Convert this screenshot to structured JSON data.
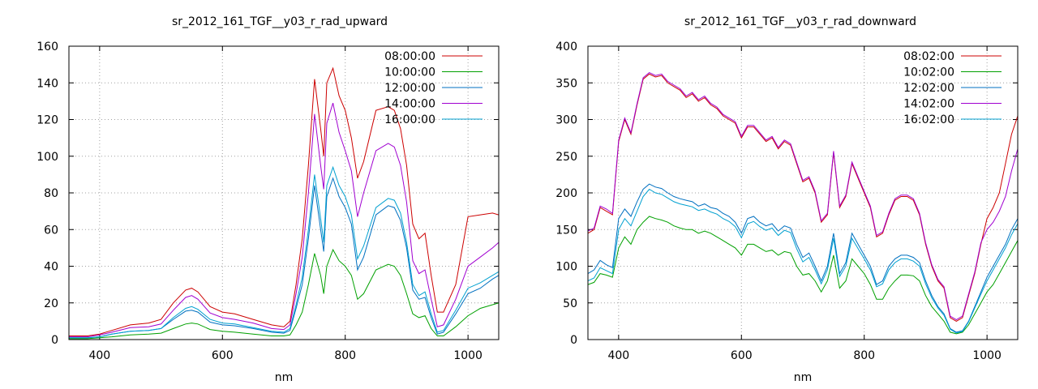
{
  "chart_data": [
    {
      "type": "line",
      "title": "sr_2012_161_TGF__y03_r_rad_upward",
      "xlabel": "nm",
      "ylabel": "",
      "xlim": [
        350,
        1050
      ],
      "ylim": [
        0,
        160
      ],
      "x_ticks": [
        400,
        600,
        800,
        1000
      ],
      "y_ticks": [
        0,
        20,
        40,
        60,
        80,
        100,
        120,
        140,
        160
      ],
      "grid": true,
      "legend_position": "top-right",
      "x": [
        350,
        380,
        400,
        420,
        450,
        480,
        500,
        520,
        540,
        550,
        560,
        580,
        600,
        620,
        650,
        680,
        700,
        710,
        720,
        730,
        740,
        750,
        760,
        765,
        770,
        780,
        790,
        800,
        810,
        820,
        830,
        850,
        870,
        880,
        890,
        900,
        910,
        920,
        930,
        940,
        950,
        960,
        980,
        1000,
        1020,
        1040,
        1050
      ],
      "series": [
        {
          "name": "08:00:00",
          "color": "#cc0000",
          "values": [
            2,
            2,
            3,
            5,
            8,
            9,
            11,
            20,
            27,
            28,
            26,
            18,
            15,
            14,
            11,
            8,
            7,
            10,
            30,
            55,
            95,
            142,
            115,
            100,
            140,
            148,
            133,
            125,
            110,
            88,
            97,
            125,
            127,
            125,
            115,
            95,
            63,
            55,
            58,
            35,
            15,
            15,
            30,
            67,
            68,
            69,
            68
          ]
        },
        {
          "name": "10:00:00",
          "color": "#00a000",
          "values": [
            0.5,
            0.5,
            1,
            1.5,
            2.5,
            3,
            3.5,
            6,
            8.5,
            9,
            8.5,
            5.5,
            4.5,
            4,
            3,
            2,
            2,
            2.5,
            8,
            15,
            30,
            47,
            35,
            25,
            40,
            49,
            43,
            40,
            35,
            22,
            25,
            38,
            41,
            40,
            35,
            25,
            14,
            12,
            13,
            6,
            2,
            2,
            7,
            13,
            17,
            19,
            20
          ]
        },
        {
          "name": "12:00:00",
          "color": "#0070c0",
          "values": [
            1,
            1,
            1.5,
            3,
            4.5,
            5,
            6,
            11,
            15.5,
            16,
            15,
            9.5,
            8,
            7.5,
            6,
            4,
            3.5,
            5,
            17,
            30,
            55,
            84,
            60,
            48,
            78,
            88,
            78,
            72,
            63,
            38,
            45,
            68,
            73,
            72,
            65,
            50,
            27,
            22,
            23,
            12,
            3,
            4,
            14,
            25,
            28,
            33,
            35
          ]
        },
        {
          "name": "14:00:00",
          "color": "#a000d0",
          "values": [
            1.5,
            1.5,
            2.5,
            4,
            6.5,
            7,
            8.5,
            16,
            23,
            24,
            22,
            14.5,
            12,
            11,
            9,
            6,
            5.5,
            8,
            25,
            45,
            80,
            123,
            95,
            82,
            118,
            129,
            113,
            103,
            92,
            67,
            80,
            103,
            107,
            105,
            95,
            75,
            43,
            36,
            38,
            22,
            7,
            8,
            22,
            40,
            45,
            50,
            53
          ]
        },
        {
          "name": "16:00:00",
          "color": "#00a0d0",
          "values": [
            1,
            1,
            1.5,
            3,
            4.5,
            5,
            6,
            12,
            17,
            18,
            16.5,
            11,
            9,
            8.5,
            6.5,
            4.5,
            4,
            6,
            19,
            34,
            60,
            90,
            66,
            53,
            84,
            94,
            84,
            78,
            68,
            44,
            51,
            72,
            77,
            76,
            69,
            53,
            30,
            24,
            26,
            14,
            4,
            5,
            16,
            28,
            31,
            35,
            37
          ]
        }
      ]
    },
    {
      "type": "line",
      "title": "sr_2012_161_TGF__y03_r_rad_downward",
      "xlabel": "nm",
      "ylabel": "",
      "xlim": [
        350,
        1050
      ],
      "ylim": [
        0,
        400
      ],
      "x_ticks": [
        400,
        600,
        800,
        1000
      ],
      "y_ticks": [
        0,
        50,
        100,
        150,
        200,
        250,
        300,
        350,
        400
      ],
      "grid": true,
      "legend_position": "top-right",
      "x": [
        350,
        360,
        370,
        380,
        390,
        400,
        410,
        420,
        430,
        440,
        450,
        460,
        470,
        480,
        490,
        500,
        510,
        520,
        530,
        540,
        550,
        560,
        570,
        580,
        590,
        600,
        610,
        620,
        630,
        640,
        650,
        660,
        670,
        680,
        690,
        700,
        710,
        720,
        730,
        740,
        750,
        760,
        770,
        780,
        790,
        800,
        810,
        820,
        830,
        840,
        850,
        860,
        870,
        880,
        890,
        900,
        910,
        920,
        930,
        940,
        950,
        960,
        970,
        980,
        990,
        1000,
        1010,
        1020,
        1030,
        1040,
        1050
      ],
      "series": [
        {
          "name": "08:02:00",
          "color": "#cc0000",
          "values": [
            145,
            150,
            180,
            175,
            170,
            270,
            300,
            280,
            320,
            355,
            362,
            358,
            360,
            350,
            345,
            340,
            330,
            335,
            325,
            330,
            320,
            315,
            305,
            300,
            295,
            275,
            290,
            290,
            280,
            270,
            275,
            260,
            270,
            265,
            240,
            215,
            220,
            200,
            160,
            170,
            255,
            180,
            195,
            240,
            220,
            200,
            180,
            140,
            145,
            170,
            190,
            195,
            195,
            190,
            170,
            130,
            100,
            80,
            70,
            30,
            25,
            30,
            60,
            90,
            130,
            165,
            180,
            200,
            240,
            280,
            305
          ]
        },
        {
          "name": "10:02:00",
          "color": "#00a000",
          "values": [
            75,
            78,
            90,
            88,
            85,
            125,
            140,
            130,
            150,
            160,
            168,
            165,
            163,
            160,
            155,
            152,
            150,
            150,
            145,
            148,
            145,
            140,
            135,
            130,
            125,
            115,
            130,
            130,
            125,
            120,
            122,
            115,
            120,
            118,
            100,
            88,
            90,
            80,
            65,
            80,
            115,
            70,
            80,
            110,
            100,
            90,
            75,
            55,
            55,
            70,
            80,
            88,
            88,
            87,
            80,
            60,
            45,
            35,
            25,
            10,
            8,
            10,
            20,
            35,
            50,
            65,
            75,
            90,
            105,
            120,
            135
          ]
        },
        {
          "name": "12:02:00",
          "color": "#0070c0",
          "values": [
            90,
            95,
            108,
            102,
            98,
            165,
            178,
            168,
            188,
            205,
            212,
            208,
            206,
            200,
            195,
            192,
            190,
            188,
            182,
            185,
            180,
            178,
            172,
            168,
            160,
            145,
            165,
            168,
            160,
            155,
            158,
            148,
            155,
            152,
            130,
            112,
            118,
            100,
            80,
            100,
            145,
            90,
            105,
            145,
            130,
            115,
            100,
            75,
            80,
            100,
            110,
            115,
            115,
            112,
            105,
            80,
            60,
            45,
            35,
            15,
            10,
            12,
            25,
            45,
            65,
            85,
            100,
            115,
            130,
            150,
            165
          ]
        },
        {
          "name": "14:02:00",
          "color": "#a000d0",
          "values": [
            148,
            152,
            182,
            178,
            172,
            272,
            302,
            282,
            322,
            357,
            364,
            360,
            362,
            352,
            347,
            342,
            332,
            337,
            327,
            332,
            322,
            317,
            307,
            302,
            297,
            277,
            292,
            292,
            282,
            272,
            277,
            262,
            272,
            267,
            242,
            217,
            222,
            202,
            162,
            172,
            257,
            182,
            197,
            242,
            222,
            202,
            182,
            142,
            147,
            172,
            192,
            197,
            197,
            192,
            172,
            132,
            102,
            82,
            72,
            32,
            27,
            32,
            62,
            92,
            132,
            150,
            160,
            175,
            195,
            230,
            260
          ]
        },
        {
          "name": "16:02:00",
          "color": "#00a0d0",
          "values": [
            80,
            84,
            98,
            94,
            90,
            150,
            165,
            155,
            175,
            195,
            205,
            200,
            198,
            193,
            188,
            185,
            183,
            181,
            176,
            178,
            174,
            171,
            165,
            161,
            154,
            139,
            158,
            161,
            154,
            149,
            152,
            142,
            149,
            146,
            124,
            106,
            112,
            95,
            76,
            95,
            138,
            86,
            100,
            138,
            124,
            110,
            95,
            72,
            76,
            95,
            105,
            110,
            110,
            107,
            100,
            76,
            57,
            43,
            33,
            14,
            9,
            11,
            24,
            43,
            62,
            80,
            95,
            110,
            125,
            143,
            158
          ]
        }
      ]
    }
  ]
}
